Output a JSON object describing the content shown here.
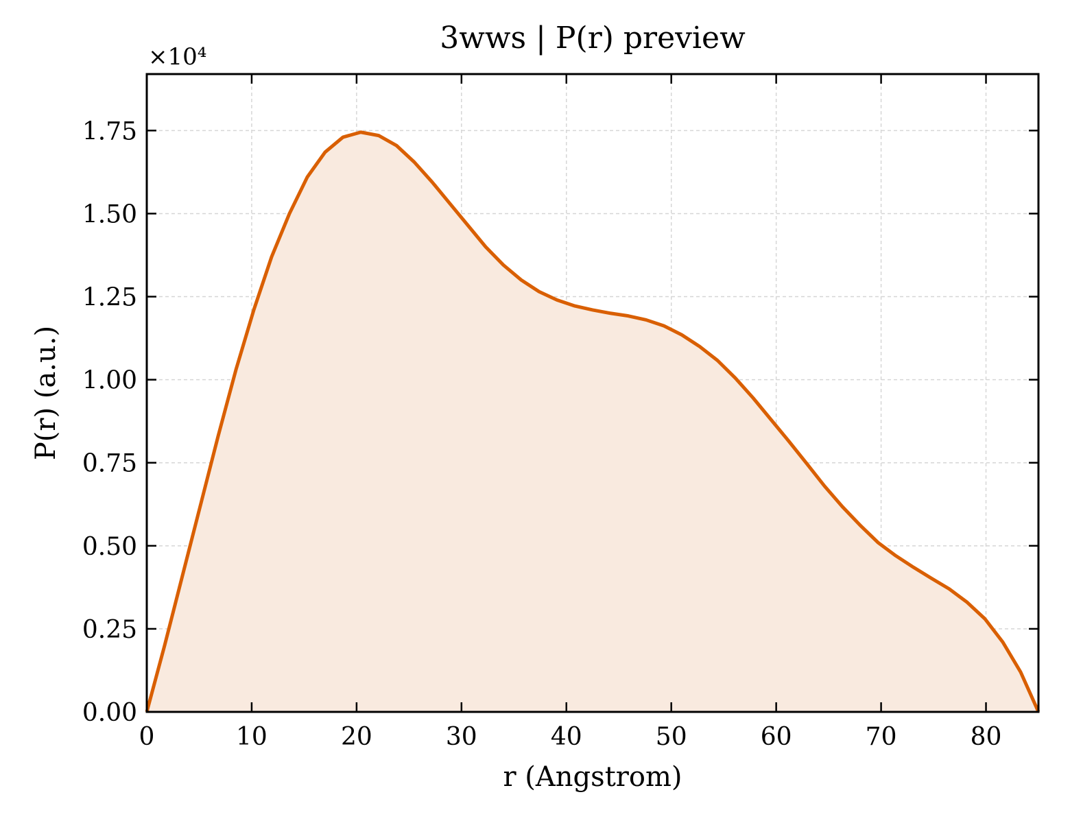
{
  "chart_data": {
    "type": "area",
    "title": "3wws | P(r) preview",
    "xlabel": "r (Angstrom)",
    "ylabel": "P(r) (a.u.)",
    "y_offset_label": "×10⁴",
    "x": [
      0,
      1.7,
      3.4,
      5.1,
      6.8,
      8.5,
      10.2,
      11.9,
      13.6,
      15.3,
      17.0,
      18.7,
      20.4,
      22.1,
      23.8,
      25.5,
      27.2,
      28.9,
      30.6,
      32.3,
      34.0,
      35.7,
      37.4,
      39.1,
      40.8,
      42.5,
      44.2,
      45.9,
      47.6,
      49.3,
      51.0,
      52.7,
      54.4,
      56.1,
      57.8,
      59.5,
      61.2,
      62.9,
      64.6,
      66.3,
      68.0,
      69.7,
      71.4,
      73.1,
      74.8,
      76.5,
      78.2,
      79.9,
      81.6,
      83.3,
      85.0
    ],
    "series": [
      {
        "name": "P(r)",
        "color": "#d95f02",
        "fill_color": "#f9eadf",
        "values": [
          0,
          0.2,
          0.41,
          0.62,
          0.83,
          1.03,
          1.21,
          1.37,
          1.5,
          1.61,
          1.685,
          1.73,
          1.745,
          1.735,
          1.705,
          1.655,
          1.595,
          1.53,
          1.465,
          1.4,
          1.345,
          1.3,
          1.265,
          1.24,
          1.222,
          1.21,
          1.2,
          1.192,
          1.18,
          1.162,
          1.135,
          1.1,
          1.058,
          1.005,
          0.945,
          0.88,
          0.815,
          0.748,
          0.68,
          0.618,
          0.562,
          0.51,
          0.47,
          0.435,
          0.402,
          0.37,
          0.33,
          0.28,
          0.21,
          0.12,
          0
        ]
      }
    ],
    "xlim": [
      0,
      85
    ],
    "ylim": [
      0,
      1.92
    ],
    "xticks": [
      0,
      10,
      20,
      30,
      40,
      50,
      60,
      70,
      80
    ],
    "yticks": [
      {
        "value": 0,
        "label": "0.00"
      },
      {
        "value": 0.25,
        "label": "0.25"
      },
      {
        "value": 0.5,
        "label": "0.50"
      },
      {
        "value": 0.75,
        "label": "0.75"
      },
      {
        "value": 1,
        "label": "1.00"
      },
      {
        "value": 1.25,
        "label": "1.25"
      },
      {
        "value": 1.5,
        "label": "1.50"
      },
      {
        "value": 1.75,
        "label": "1.75"
      }
    ],
    "grid": true
  }
}
